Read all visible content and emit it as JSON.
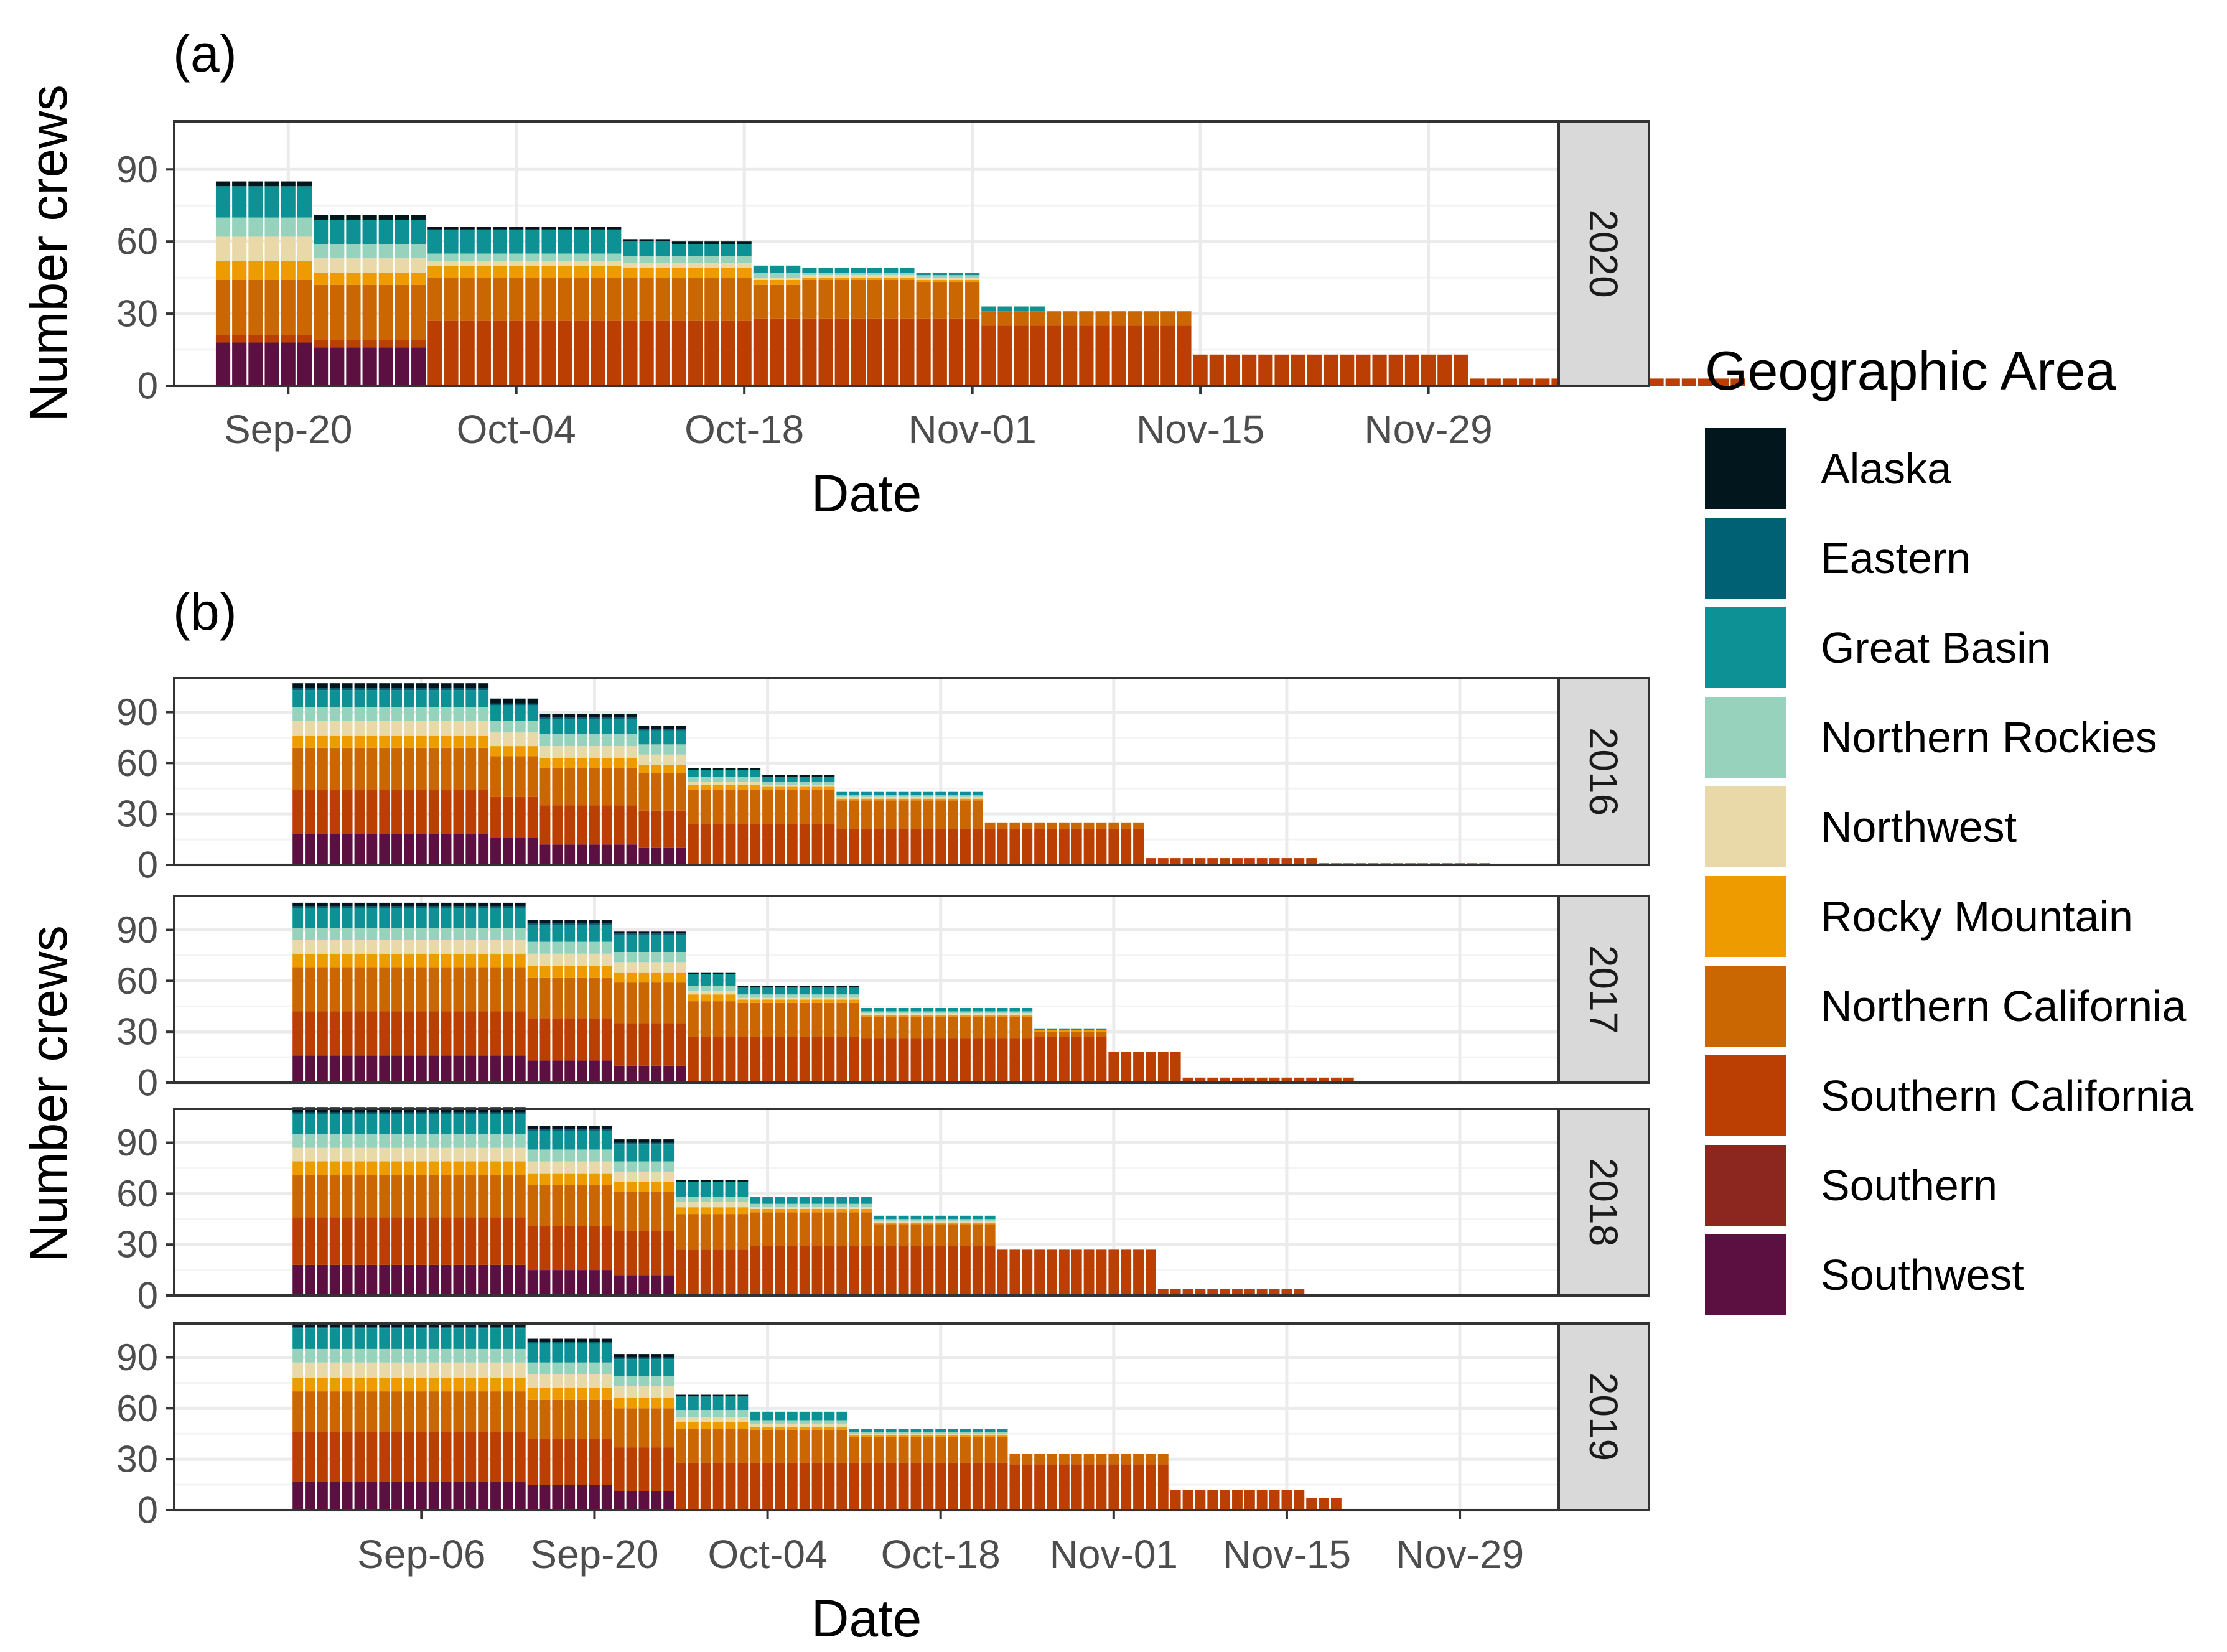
{
  "chart_data": [
    {
      "id": "a",
      "panel_label": "(a)",
      "type": "bar",
      "stacked": true,
      "xlabel": "Date",
      "ylabel": "Number crews",
      "x_ticks": [
        "Sep-20",
        "Oct-04",
        "Oct-18",
        "Nov-01",
        "Nov-15",
        "Nov-29"
      ],
      "y_ticks": [
        0,
        30,
        60,
        90
      ],
      "ylim": [
        0,
        110
      ],
      "grid": true,
      "legend": "right",
      "facets": [
        {
          "strip": "2020",
          "x_start": "Sep-16",
          "step_days": 1,
          "segments": [
            {
              "days": 6,
              "values": [
                2,
                0,
                13,
                8,
                10,
                8,
                23,
                3,
                0,
                18
              ]
            },
            {
              "days": 7,
              "values": [
                2,
                0,
                10,
                6,
                6,
                5,
                23,
                3,
                0,
                16
              ]
            },
            {
              "days": 12,
              "values": [
                1,
                0,
                10,
                3,
                2,
                5,
                18,
                27,
                0,
                0
              ]
            },
            {
              "days": 3,
              "values": [
                1,
                0,
                6,
                3,
                2,
                4,
                18,
                27,
                0,
                0
              ]
            },
            {
              "days": 5,
              "values": [
                1,
                0,
                5,
                3,
                2,
                4,
                18,
                27,
                0,
                0
              ]
            },
            {
              "days": 3,
              "values": [
                0,
                0,
                3,
                2,
                1,
                2,
                14,
                28,
                0,
                0
              ]
            },
            {
              "days": 7,
              "values": [
                0,
                0,
                2,
                1,
                1,
                1,
                16,
                28,
                0,
                0
              ]
            },
            {
              "days": 4,
              "values": [
                0,
                0,
                1,
                1,
                1,
                1,
                15,
                28,
                0,
                0
              ]
            },
            {
              "days": 4,
              "values": [
                0,
                0,
                2,
                0,
                0,
                0,
                6,
                25,
                0,
                0
              ]
            },
            {
              "days": 9,
              "values": [
                0,
                0,
                0,
                0,
                0,
                0,
                6,
                25,
                0,
                0
              ]
            },
            {
              "days": 17,
              "values": [
                0,
                0,
                0,
                0,
                0,
                0,
                0,
                13,
                0,
                0
              ]
            },
            {
              "days": 17,
              "values": [
                0,
                0,
                0,
                0,
                0,
                0,
                0,
                3,
                0,
                0
              ]
            }
          ]
        }
      ]
    },
    {
      "id": "b",
      "panel_label": "(b)",
      "type": "bar",
      "stacked": true,
      "xlabel": "Date",
      "ylabel": "Number crews",
      "x_ticks": [
        "Sep-06",
        "Sep-20",
        "Oct-04",
        "Oct-18",
        "Nov-01",
        "Nov-15",
        "Nov-29"
      ],
      "y_ticks": [
        0,
        30,
        60,
        90
      ],
      "ylim": [
        0,
        110
      ],
      "grid": true,
      "legend": "right",
      "facets": [
        {
          "strip": "2016",
          "x_start": "Aug-27",
          "step_days": 1,
          "segments": [
            {
              "days": 16,
              "values": [
                3,
                1,
                10,
                8,
                9,
                7,
                25,
                26,
                0,
                18
              ]
            },
            {
              "days": 4,
              "values": [
                3,
                1,
                9,
                7,
                8,
                6,
                24,
                24,
                0,
                16
              ]
            },
            {
              "days": 8,
              "values": [
                2,
                1,
                9,
                7,
                7,
                6,
                22,
                23,
                0,
                12
              ]
            },
            {
              "days": 4,
              "values": [
                2,
                1,
                8,
                6,
                6,
                5,
                22,
                22,
                0,
                10
              ]
            },
            {
              "days": 6,
              "values": [
                1,
                0,
                4,
                3,
                2,
                3,
                20,
                24,
                0,
                0
              ]
            },
            {
              "days": 6,
              "values": [
                1,
                0,
                3,
                2,
                1,
                2,
                20,
                24,
                0,
                0
              ]
            },
            {
              "days": 12,
              "values": [
                0,
                0,
                2,
                1,
                1,
                1,
                17,
                21,
                0,
                0
              ]
            },
            {
              "days": 13,
              "values": [
                0,
                0,
                0,
                0,
                0,
                0,
                4,
                21,
                0,
                0
              ]
            },
            {
              "days": 14,
              "values": [
                0,
                0,
                0,
                0,
                0,
                0,
                0,
                4,
                0,
                0
              ]
            },
            {
              "days": 14,
              "values": [
                0,
                0,
                0,
                0,
                0,
                0,
                0,
                1,
                0,
                0
              ]
            }
          ]
        },
        {
          "strip": "2017",
          "x_start": "Aug-27",
          "step_days": 1,
          "segments": [
            {
              "days": 19,
              "values": [
                2,
                1,
                12,
                7,
                8,
                8,
                26,
                26,
                0,
                16
              ]
            },
            {
              "days": 7,
              "values": [
                2,
                1,
                10,
                7,
                7,
                7,
                24,
                25,
                0,
                13
              ]
            },
            {
              "days": 6,
              "values": [
                1,
                1,
                10,
                6,
                6,
                6,
                24,
                25,
                0,
                10
              ]
            },
            {
              "days": 4,
              "values": [
                1,
                0,
                7,
                3,
                2,
                4,
                21,
                27,
                0,
                0
              ]
            },
            {
              "days": 10,
              "values": [
                1,
                0,
                4,
                2,
                1,
                2,
                20,
                27,
                0,
                0
              ]
            },
            {
              "days": 14,
              "values": [
                0,
                0,
                2,
                1,
                1,
                1,
                13,
                26,
                0,
                0
              ]
            },
            {
              "days": 6,
              "values": [
                0,
                0,
                1,
                0,
                0,
                1,
                3,
                27,
                0,
                0
              ]
            },
            {
              "days": 6,
              "values": [
                0,
                0,
                0,
                0,
                0,
                0,
                0,
                18,
                0,
                0
              ]
            },
            {
              "days": 14,
              "values": [
                0,
                0,
                0,
                0,
                0,
                0,
                0,
                3,
                0,
                0
              ]
            },
            {
              "days": 14,
              "values": [
                0,
                0,
                0,
                0,
                0,
                0,
                0,
                1,
                0,
                0
              ]
            }
          ]
        },
        {
          "strip": "2018",
          "x_start": "Aug-27",
          "step_days": 1,
          "segments": [
            {
              "days": 19,
              "values": [
                3,
                1,
                12,
                8,
                8,
                8,
                25,
                28,
                0,
                18
              ]
            },
            {
              "days": 7,
              "values": [
                2,
                1,
                11,
                7,
                7,
                7,
                24,
                26,
                0,
                15
              ]
            },
            {
              "days": 5,
              "values": [
                2,
                1,
                10,
                6,
                6,
                6,
                23,
                26,
                0,
                12
              ]
            },
            {
              "days": 6,
              "values": [
                1,
                0,
                9,
                3,
                3,
                4,
                21,
                27,
                0,
                0
              ]
            },
            {
              "days": 10,
              "values": [
                0,
                0,
                4,
                2,
                1,
                2,
                20,
                29,
                0,
                0
              ]
            },
            {
              "days": 10,
              "values": [
                0,
                0,
                2,
                1,
                1,
                1,
                13,
                29,
                0,
                0
              ]
            },
            {
              "days": 13,
              "values": [
                0,
                0,
                0,
                0,
                0,
                0,
                0,
                27,
                0,
                0
              ]
            },
            {
              "days": 12,
              "values": [
                0,
                0,
                0,
                0,
                0,
                0,
                0,
                4,
                0,
                0
              ]
            },
            {
              "days": 14,
              "values": [
                0,
                0,
                0,
                0,
                0,
                0,
                0,
                1,
                0,
                0
              ]
            }
          ]
        },
        {
          "strip": "2019",
          "x_start": "Aug-27",
          "step_days": 1,
          "segments": [
            {
              "days": 19,
              "values": [
                3,
                1,
                12,
                8,
                9,
                8,
                24,
                29,
                0,
                17
              ]
            },
            {
              "days": 7,
              "values": [
                2,
                1,
                11,
                7,
                8,
                7,
                23,
                27,
                0,
                15
              ]
            },
            {
              "days": 5,
              "values": [
                2,
                1,
                10,
                6,
                7,
                6,
                23,
                26,
                0,
                11
              ]
            },
            {
              "days": 6,
              "values": [
                1,
                0,
                8,
                4,
                3,
                4,
                20,
                28,
                0,
                0
              ]
            },
            {
              "days": 8,
              "values": [
                0,
                0,
                5,
                2,
                2,
                2,
                19,
                28,
                0,
                0
              ]
            },
            {
              "days": 13,
              "values": [
                0,
                0,
                2,
                1,
                1,
                1,
                15,
                28,
                0,
                0
              ]
            },
            {
              "days": 13,
              "values": [
                0,
                0,
                0,
                0,
                0,
                0,
                6,
                27,
                0,
                0
              ]
            },
            {
              "days": 11,
              "values": [
                0,
                0,
                0,
                0,
                0,
                0,
                0,
                12,
                0,
                0
              ]
            },
            {
              "days": 3,
              "values": [
                0,
                0,
                0,
                0,
                0,
                0,
                0,
                7,
                0,
                0
              ]
            }
          ]
        }
      ]
    }
  ],
  "legend": {
    "title": "Geographic Area",
    "items": [
      {
        "label": "Alaska",
        "color": "#02161e"
      },
      {
        "label": "Eastern",
        "color": "#006074"
      },
      {
        "label": "Great Basin",
        "color": "#0e9195"
      },
      {
        "label": "Northern Rockies",
        "color": "#96d2bc"
      },
      {
        "label": "Northwest",
        "color": "#ead9a8"
      },
      {
        "label": "Rocky Mountain",
        "color": "#ee9b00"
      },
      {
        "label": "Northern California",
        "color": "#ca6702"
      },
      {
        "label": "Southern California",
        "color": "#bb3e03"
      },
      {
        "label": "Southern",
        "color": "#8c2720"
      },
      {
        "label": "Southwest",
        "color": "#5b1041"
      }
    ]
  }
}
